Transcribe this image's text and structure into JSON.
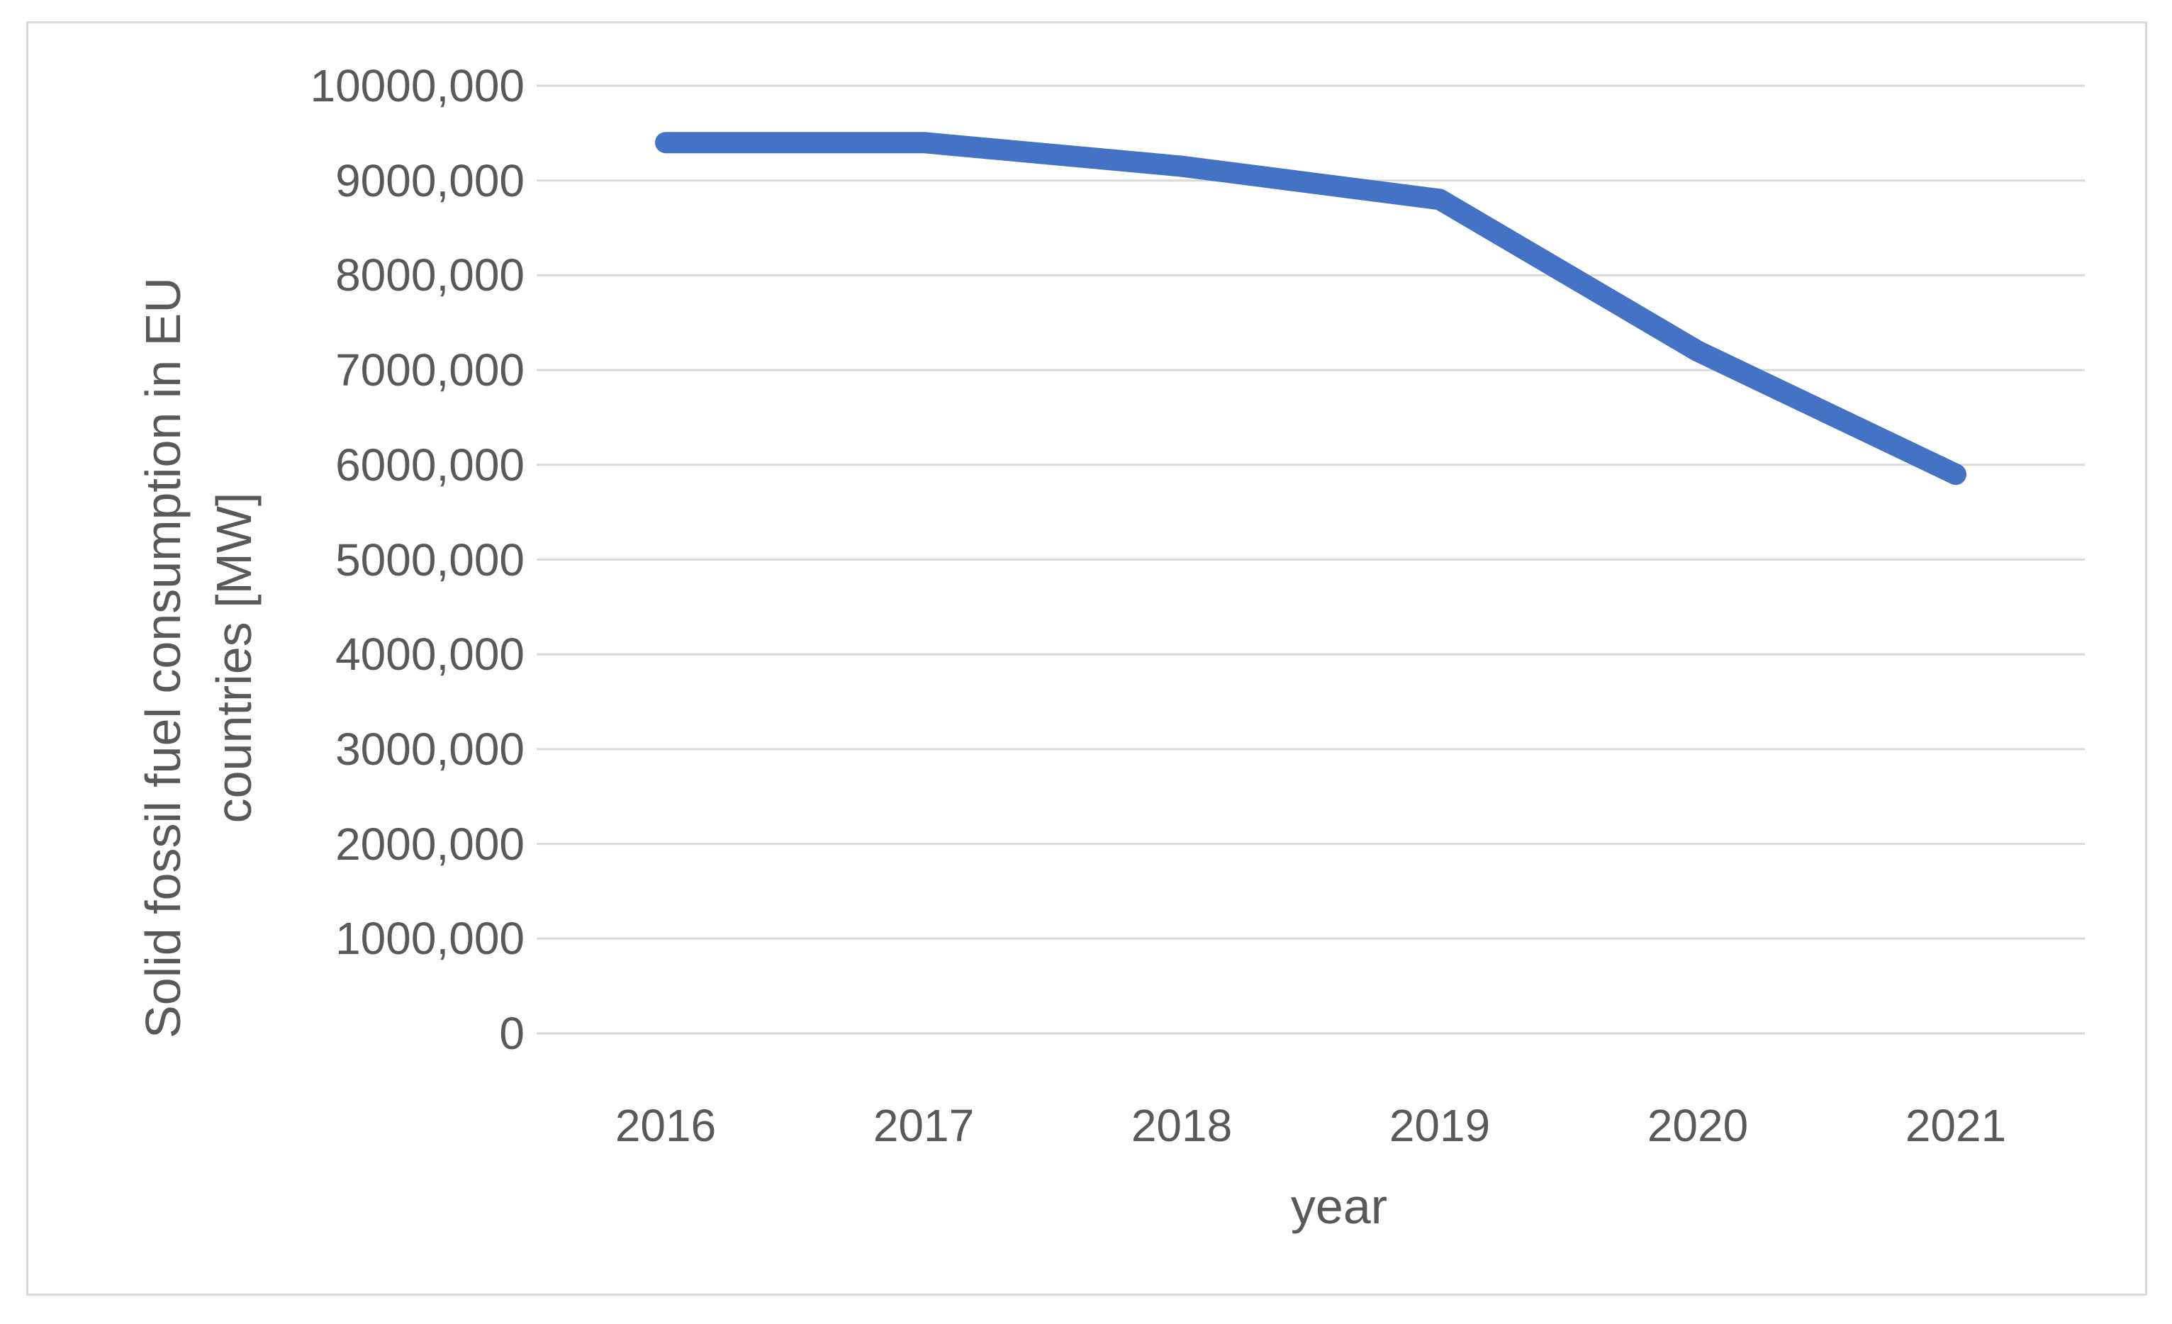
{
  "chart_data": {
    "type": "line",
    "title": "",
    "categories": [
      "2016",
      "2017",
      "2018",
      "2019",
      "2020",
      "2021"
    ],
    "series": [
      {
        "name": "Solid fossil fuel consumption in EU countries",
        "values": [
          9400000,
          9400000,
          9150000,
          8800000,
          7200000,
          5900000
        ]
      }
    ],
    "xlabel": "year",
    "ylabel": "Solid fossil fuel consumption in EU countries [MW]",
    "ylabel_lines": [
      "Solid fossil fuel consumption in EU",
      "countries [MW]"
    ],
    "ylim": [
      0,
      10000000
    ],
    "ytick_interval": 1000000,
    "ytick_labels_top_to_bottom": [
      "10000,000",
      "9000,000",
      "8000,000",
      "7000,000",
      "6000,000",
      "5000,000",
      "4000,000",
      "3000,000",
      "2000,000",
      "1000,000",
      "0"
    ],
    "grid": "horizontal",
    "legend": "none",
    "colors": {
      "line": "#4472C4",
      "gridline": "#d9d9d9",
      "axis_line": "#d9d9d9",
      "text": "#595959",
      "frame_border": "#d9d9d9",
      "background": "#ffffff"
    }
  }
}
